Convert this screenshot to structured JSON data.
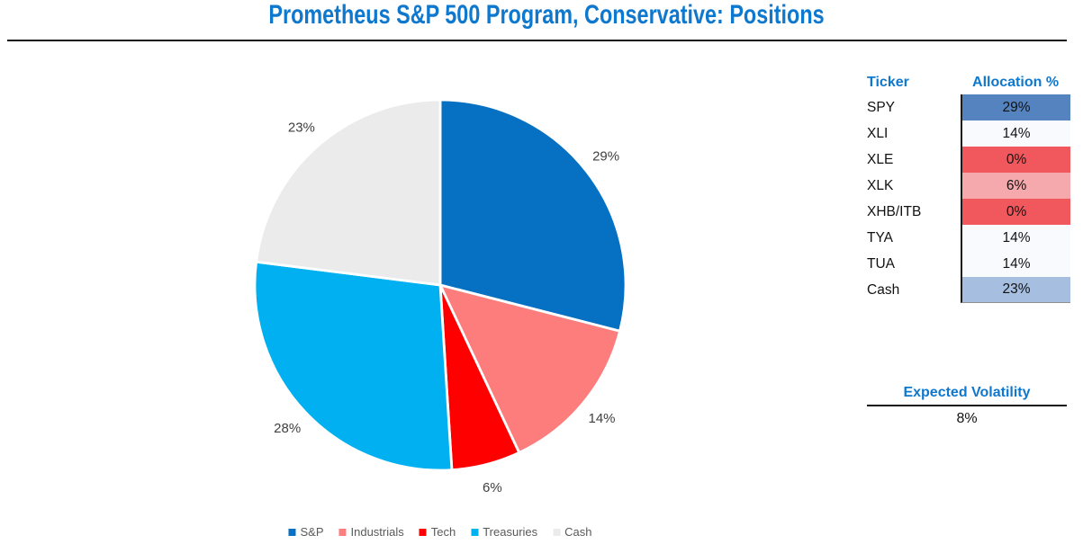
{
  "title": "Prometheus S&P 500 Program, Conservative: Positions",
  "chart_data": {
    "type": "pie",
    "title": "Prometheus S&P 500 Program, Conservative: Positions",
    "categories": [
      "S&P",
      "Industrials",
      "Tech",
      "Treasuries",
      "Cash"
    ],
    "values": [
      29,
      14,
      6,
      28,
      23
    ],
    "slice_labels": [
      "29%",
      "14%",
      "6%",
      "28%",
      "23%"
    ],
    "colors": [
      "#0671C3",
      "#FD7C7C",
      "#FE0000",
      "#00B0F0",
      "#EBEBEB"
    ],
    "start_angle_deg": 0,
    "direction": "clockwise",
    "legend_position": "bottom"
  },
  "allocation_table": {
    "headers": [
      "Ticker",
      "Allocation %"
    ],
    "rows": [
      {
        "ticker": "SPY",
        "value": "29%",
        "cell_color": "#5583BF"
      },
      {
        "ticker": "XLI",
        "value": "14%",
        "cell_color": "#F8FAFD"
      },
      {
        "ticker": "XLE",
        "value": "0%",
        "cell_color": "#F0585E"
      },
      {
        "ticker": "XLK",
        "value": "6%",
        "cell_color": "#F5A9AC"
      },
      {
        "ticker": "XHB/ITB",
        "value": "0%",
        "cell_color": "#F0585E"
      },
      {
        "ticker": "TYA",
        "value": "14%",
        "cell_color": "#F8FAFD"
      },
      {
        "ticker": "TUA",
        "value": "14%",
        "cell_color": "#F8FAFD"
      },
      {
        "ticker": "Cash",
        "value": "23%",
        "cell_color": "#A6BEE0"
      }
    ]
  },
  "volatility": {
    "label": "Expected Volatility",
    "value": "8%"
  },
  "colors": {
    "accent_blue": "#0E78CE",
    "pie_label_gray": "#404040",
    "legend_text_gray": "#595959"
  }
}
